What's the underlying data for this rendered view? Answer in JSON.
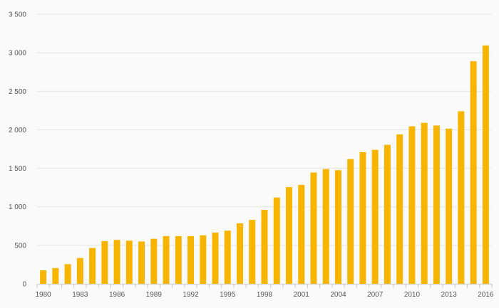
{
  "chart_data": {
    "type": "bar",
    "title": "",
    "xlabel": "",
    "ylabel": "",
    "categories": [
      "1980",
      "1981",
      "1982",
      "1983",
      "1984",
      "1985",
      "1986",
      "1987",
      "1988",
      "1989",
      "1990",
      "1991",
      "1992",
      "1993",
      "1994",
      "1995",
      "1996",
      "1997",
      "1998",
      "1999",
      "2000",
      "2001",
      "2002",
      "2003",
      "2004",
      "2005",
      "2006",
      "2007",
      "2008",
      "2009",
      "2010",
      "2011",
      "2012",
      "2013",
      "2014",
      "2015",
      "2016"
    ],
    "x_tick_labels": [
      "1980",
      "1983",
      "1986",
      "1989",
      "1992",
      "1995",
      "1998",
      "2001",
      "2004",
      "2007",
      "2010",
      "2013",
      "2016"
    ],
    "values": [
      175,
      205,
      255,
      335,
      465,
      555,
      570,
      560,
      550,
      585,
      620,
      620,
      620,
      630,
      665,
      690,
      785,
      830,
      960,
      1120,
      1255,
      1285,
      1445,
      1490,
      1475,
      1620,
      1710,
      1740,
      1805,
      1940,
      2045,
      2090,
      2055,
      2015,
      2240,
      2890,
      3095
    ],
    "ylim": [
      0,
      3500
    ],
    "y_ticks": [
      0,
      500,
      1000,
      1500,
      2000,
      2500,
      3000,
      3500
    ],
    "y_tick_labels": [
      "0",
      "500",
      "1 000",
      "1 500",
      "2 000",
      "2 500",
      "3 000",
      "3 500"
    ],
    "grid": true,
    "bar_color": "#f7b500",
    "grid_color": "#e3e3e3",
    "background": "#fafafa"
  }
}
